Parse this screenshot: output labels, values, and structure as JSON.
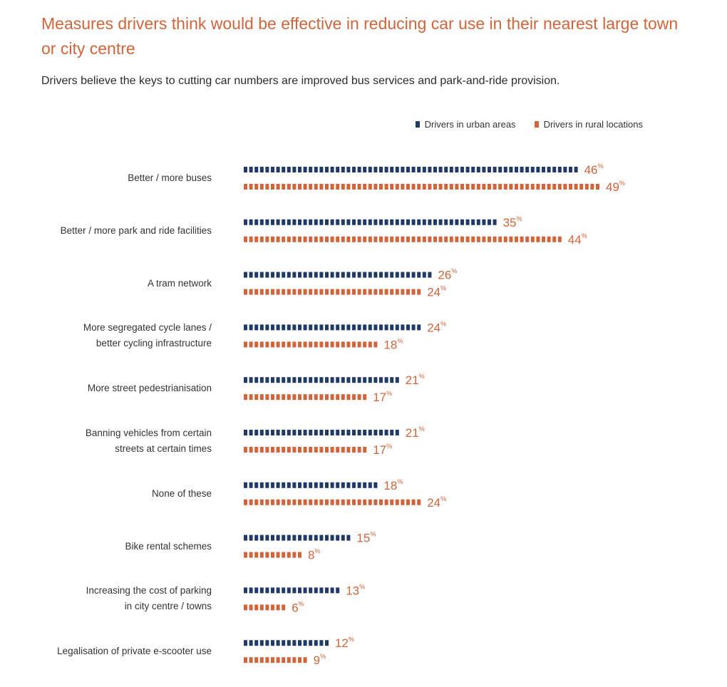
{
  "chart_data": {
    "type": "bar",
    "orientation": "horizontal",
    "title": "Measures drivers think would be effective in reducing car use in their nearest large town or city centre",
    "subtitle": "Drivers believe the keys to cutting car numbers are improved bus services and park-and-ride provision.",
    "unit": "%",
    "legend_position": "top-right",
    "grid": false,
    "xlim": [
      0,
      50
    ],
    "categories": [
      [
        "Better / more buses"
      ],
      [
        "Better / more park and ride facilities"
      ],
      [
        "A tram network"
      ],
      [
        "More segregated cycle lanes /",
        "better cycling infrastructure"
      ],
      [
        "More street pedestrianisation"
      ],
      [
        "Banning vehicles from certain",
        "streets at certain times"
      ],
      [
        "None of these"
      ],
      [
        "Bike rental schemes"
      ],
      [
        "Increasing the cost of parking",
        "in city centre / towns"
      ],
      [
        "Legalisation of private e-scooter use"
      ]
    ],
    "series": [
      {
        "name": "Drivers in urban areas",
        "color": "#1f3a66",
        "values": [
          46,
          35,
          26,
          24,
          21,
          21,
          18,
          15,
          13,
          12
        ]
      },
      {
        "name": "Drivers in rural locations",
        "color": "#d0643a",
        "values": [
          49,
          44,
          24,
          18,
          17,
          17,
          24,
          8,
          6,
          9
        ]
      }
    ]
  }
}
